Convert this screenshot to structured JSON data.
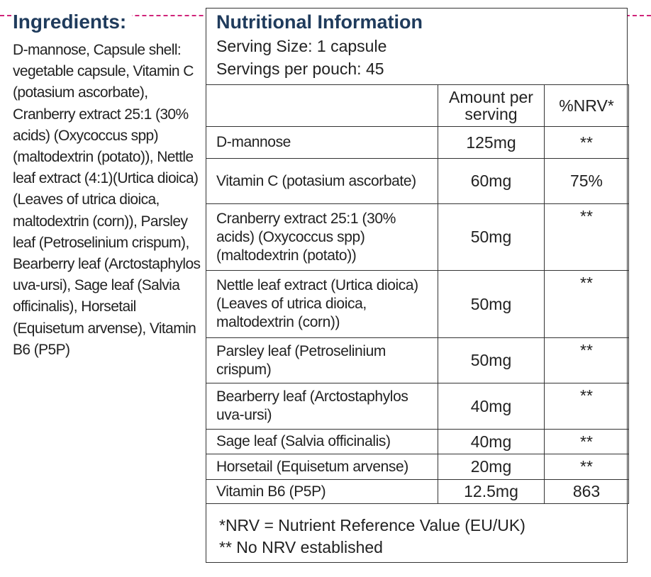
{
  "ingredients": {
    "title": "Ingredients:",
    "text": "D-mannose, Capsule shell: vegetable capsule, Vitamin C (potasium ascorbate), Cranberry extract 25:1 (30% acids) (Oxycoccus spp) (maltodextrin (potato)), Nettle leaf extract (4:1)(Urtica dioica) (Leaves of utrica dioica, maltodextrin (corn)), Parsley leaf (Petroselinium crispum), Bearberry leaf (Arctostaphylos uva-ursi), Sage leaf (Salvia officinalis), Horsetail (Equisetum arvense), Vitamin B6 (P5P)"
  },
  "panel": {
    "title": "Nutritional Information",
    "serving_size": "Serving Size: 1 capsule",
    "servings_per_pouch": "Servings per pouch: 45",
    "header_amount": "Amount per serving",
    "header_nrv": "%NRV*",
    "rows": [
      {
        "name": "D-mannose",
        "amount": "125mg",
        "nrv": "**"
      },
      {
        "name": "Vitamin C (potasium ascorbate)",
        "amount": "60mg",
        "nrv": "75%"
      },
      {
        "name": "Cranberry extract 25:1 (30% acids) (Oxycoccus spp) (maltodextrin (potato))",
        "amount": "50mg",
        "nrv": "**"
      },
      {
        "name": "Nettle leaf extract (Urtica dioica) (Leaves of utrica dioica, maltodextrin (corn))",
        "amount": "50mg",
        "nrv": "**"
      },
      {
        "name": "Parsley leaf (Petroselinium crispum)",
        "amount": "50mg",
        "nrv": "**"
      },
      {
        "name": "Bearberry leaf (Arctostaphylos uva-ursi)",
        "amount": "40mg",
        "nrv": "**"
      },
      {
        "name": "Sage leaf (Salvia officinalis)",
        "amount": "40mg",
        "nrv": "**"
      },
      {
        "name": "Horsetail (Equisetum arvense)",
        "amount": "20mg",
        "nrv": "**"
      },
      {
        "name": "Vitamin B6 (P5P)",
        "amount": "12.5mg",
        "nrv": "863"
      }
    ],
    "footnote_1": "*NRV = Nutrient Reference Value (EU/UK)",
    "footnote_2": "** No NRV established"
  },
  "colors": {
    "heading": "#1f3b5c",
    "dash_line": "#d0247a",
    "text": "#222222",
    "border": "#333333"
  }
}
